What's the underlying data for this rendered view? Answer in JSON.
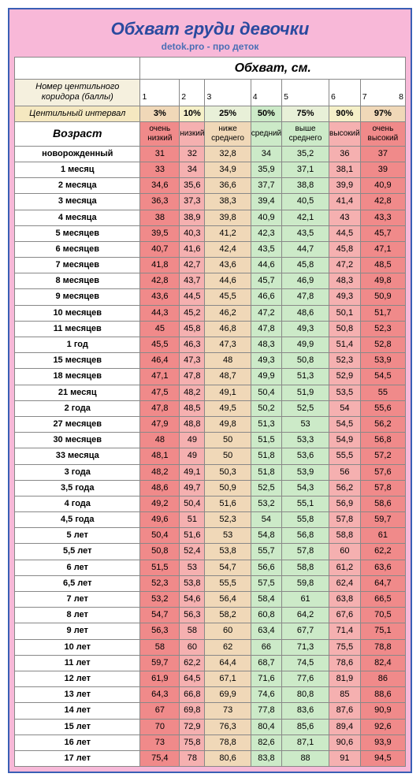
{
  "title": "Обхват груди девочки",
  "subtitle": "detok.pro - про деток",
  "section_header": "Обхват, см.",
  "corridor_label": "Номер центильного коридора (баллы)",
  "corridor_numbers": [
    "1",
    "2",
    "3",
    "4",
    "5",
    "6",
    "7",
    "8"
  ],
  "interval_label": "Центильный интервал",
  "percentiles": [
    "3%",
    "10%",
    "25%",
    "50%",
    "75%",
    "90%",
    "97%"
  ],
  "age_header": "Возраст",
  "categories": [
    "очень низкий",
    "низкий",
    "ниже среднего",
    "средний",
    "выше среднего",
    "высокий",
    "очень высокий"
  ],
  "col_colors": [
    "#f08a8a",
    "#f5b0b0",
    "#f0d8b8",
    "#cceac8",
    "#cceac8",
    "#f5b0b0",
    "#f08a8a"
  ],
  "percent_bg": [
    "#f0d8b8",
    "#f5f0c8",
    "#e8f0d8",
    "#cceac8",
    "#e8f0d8",
    "#f5f0c8",
    "#f0d8b8"
  ],
  "rows": [
    {
      "age": "новорожденный",
      "v": [
        "31",
        "32",
        "32,8",
        "34",
        "35,2",
        "36",
        "37"
      ]
    },
    {
      "age": "1 месяц",
      "v": [
        "33",
        "34",
        "34,9",
        "35,9",
        "37,1",
        "38,1",
        "39"
      ]
    },
    {
      "age": "2 месяца",
      "v": [
        "34,6",
        "35,6",
        "36,6",
        "37,7",
        "38,8",
        "39,9",
        "40,9"
      ]
    },
    {
      "age": "3 месяца",
      "v": [
        "36,3",
        "37,3",
        "38,3",
        "39,4",
        "40,5",
        "41,4",
        "42,8"
      ]
    },
    {
      "age": "4 месяца",
      "v": [
        "38",
        "38,9",
        "39,8",
        "40,9",
        "42,1",
        "43",
        "43,3"
      ]
    },
    {
      "age": "5 месяцев",
      "v": [
        "39,5",
        "40,3",
        "41,2",
        "42,3",
        "43,5",
        "44,5",
        "45,7"
      ]
    },
    {
      "age": "6 месяцев",
      "v": [
        "40,7",
        "41,6",
        "42,4",
        "43,5",
        "44,7",
        "45,8",
        "47,1"
      ]
    },
    {
      "age": "7 месяцев",
      "v": [
        "41,8",
        "42,7",
        "43,6",
        "44,6",
        "45,8",
        "47,2",
        "48,5"
      ]
    },
    {
      "age": "8 месяцев",
      "v": [
        "42,8",
        "43,7",
        "44,6",
        "45,7",
        "46,9",
        "48,3",
        "49,8"
      ]
    },
    {
      "age": "9 месяцев",
      "v": [
        "43,6",
        "44,5",
        "45,5",
        "46,6",
        "47,8",
        "49,3",
        "50,9"
      ]
    },
    {
      "age": "10 месяцев",
      "v": [
        "44,3",
        "45,2",
        "46,2",
        "47,2",
        "48,6",
        "50,1",
        "51,7"
      ]
    },
    {
      "age": "11 месяцев",
      "v": [
        "45",
        "45,8",
        "46,8",
        "47,8",
        "49,3",
        "50,8",
        "52,3"
      ]
    },
    {
      "age": "1 год",
      "v": [
        "45,5",
        "46,3",
        "47,3",
        "48,3",
        "49,9",
        "51,4",
        "52,8"
      ]
    },
    {
      "age": "15 месяцев",
      "v": [
        "46,4",
        "47,3",
        "48",
        "49,3",
        "50,8",
        "52,3",
        "53,9"
      ]
    },
    {
      "age": "18 месяцев",
      "v": [
        "47,1",
        "47,8",
        "48,7",
        "49,9",
        "51,3",
        "52,9",
        "54,5"
      ]
    },
    {
      "age": "21 месяц",
      "v": [
        "47,5",
        "48,2",
        "49,1",
        "50,4",
        "51,9",
        "53,5",
        "55"
      ]
    },
    {
      "age": "2 года",
      "v": [
        "47,8",
        "48,5",
        "49,5",
        "50,2",
        "52,5",
        "54",
        "55,6"
      ]
    },
    {
      "age": "27 месяцев",
      "v": [
        "47,9",
        "48,8",
        "49,8",
        "51,3",
        "53",
        "54,5",
        "56,2"
      ]
    },
    {
      "age": "30 месяцев",
      "v": [
        "48",
        "49",
        "50",
        "51,5",
        "53,3",
        "54,9",
        "56,8"
      ]
    },
    {
      "age": "33 месяца",
      "v": [
        "48,1",
        "49",
        "50",
        "51,8",
        "53,6",
        "55,5",
        "57,2"
      ]
    },
    {
      "age": "3 года",
      "v": [
        "48,2",
        "49,1",
        "50,3",
        "51,8",
        "53,9",
        "56",
        "57,6"
      ]
    },
    {
      "age": "3,5 года",
      "v": [
        "48,6",
        "49,7",
        "50,9",
        "52,5",
        "54,3",
        "56,2",
        "57,8"
      ]
    },
    {
      "age": "4 года",
      "v": [
        "49,2",
        "50,4",
        "51,6",
        "53,2",
        "55,1",
        "56,9",
        "58,6"
      ]
    },
    {
      "age": "4,5 года",
      "v": [
        "49,6",
        "51",
        "52,3",
        "54",
        "55,8",
        "57,8",
        "59,7"
      ]
    },
    {
      "age": "5 лет",
      "v": [
        "50,4",
        "51,6",
        "53",
        "54,8",
        "56,8",
        "58,8",
        "61"
      ]
    },
    {
      "age": "5,5 лет",
      "v": [
        "50,8",
        "52,4",
        "53,8",
        "55,7",
        "57,8",
        "60",
        "62,2"
      ]
    },
    {
      "age": "6 лет",
      "v": [
        "51,5",
        "53",
        "54,7",
        "56,6",
        "58,8",
        "61,2",
        "63,6"
      ]
    },
    {
      "age": "6,5 лет",
      "v": [
        "52,3",
        "53,8",
        "55,5",
        "57,5",
        "59,8",
        "62,4",
        "64,7"
      ]
    },
    {
      "age": "7 лет",
      "v": [
        "53,2",
        "54,6",
        "56,4",
        "58,4",
        "61",
        "63,8",
        "66,5"
      ]
    },
    {
      "age": "8 лет",
      "v": [
        "54,7",
        "56,3",
        "58,2",
        "60,8",
        "64,2",
        "67,6",
        "70,5"
      ]
    },
    {
      "age": "9 лет",
      "v": [
        "56,3",
        "58",
        "60",
        "63,4",
        "67,7",
        "71,4",
        "75,1"
      ]
    },
    {
      "age": "10 лет",
      "v": [
        "58",
        "60",
        "62",
        "66",
        "71,3",
        "75,5",
        "78,8"
      ]
    },
    {
      "age": "11 лет",
      "v": [
        "59,7",
        "62,2",
        "64,4",
        "68,7",
        "74,5",
        "78,6",
        "82,4"
      ]
    },
    {
      "age": "12 лет",
      "v": [
        "61,9",
        "64,5",
        "67,1",
        "71,6",
        "77,6",
        "81,9",
        "86"
      ]
    },
    {
      "age": "13 лет",
      "v": [
        "64,3",
        "66,8",
        "69,9",
        "74,6",
        "80,8",
        "85",
        "88,6"
      ]
    },
    {
      "age": "14 лет",
      "v": [
        "67",
        "69,8",
        "73",
        "77,8",
        "83,6",
        "87,6",
        "90,9"
      ]
    },
    {
      "age": "15 лет",
      "v": [
        "70",
        "72,9",
        "76,3",
        "80,4",
        "85,6",
        "89,4",
        "92,6"
      ]
    },
    {
      "age": "16 лет",
      "v": [
        "73",
        "75,8",
        "78,8",
        "82,6",
        "87,1",
        "90,6",
        "93,9"
      ]
    },
    {
      "age": "17 лет",
      "v": [
        "75,4",
        "78",
        "80,6",
        "83,8",
        "88",
        "91",
        "94,5"
      ]
    }
  ]
}
